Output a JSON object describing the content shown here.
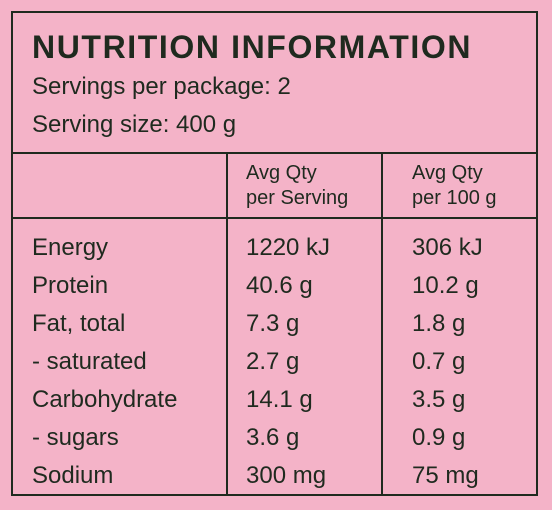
{
  "panel": {
    "title": "NUTRITION INFORMATION",
    "servings_per_package": "Servings per package: 2",
    "serving_size": "Serving size: 400 g"
  },
  "columns": {
    "per_serving": [
      "Avg Qty",
      "per Serving"
    ],
    "per_100g": [
      "Avg Qty",
      "per 100 g"
    ]
  },
  "rows": [
    {
      "name": "Energy",
      "per_serving": "1220 kJ",
      "per_100g": "306 kJ"
    },
    {
      "name": "Protein",
      "per_serving": "40.6 g",
      "per_100g": "10.2 g"
    },
    {
      "name": "Fat, total",
      "per_serving": "7.3 g",
      "per_100g": "1.8 g"
    },
    {
      "name": "- saturated",
      "per_serving": "2.7 g",
      "per_100g": "0.7 g"
    },
    {
      "name": "Carbohydrate",
      "per_serving": "14.1 g",
      "per_100g": "3.5 g"
    },
    {
      "name": "- sugars",
      "per_serving": "3.6 g",
      "per_100g": "0.9 g"
    },
    {
      "name": "Sodium",
      "per_serving": "300 mg",
      "per_100g": "75 mg"
    }
  ],
  "colors": {
    "background": "#f4b3c8",
    "ink": "#1f2a1f"
  }
}
